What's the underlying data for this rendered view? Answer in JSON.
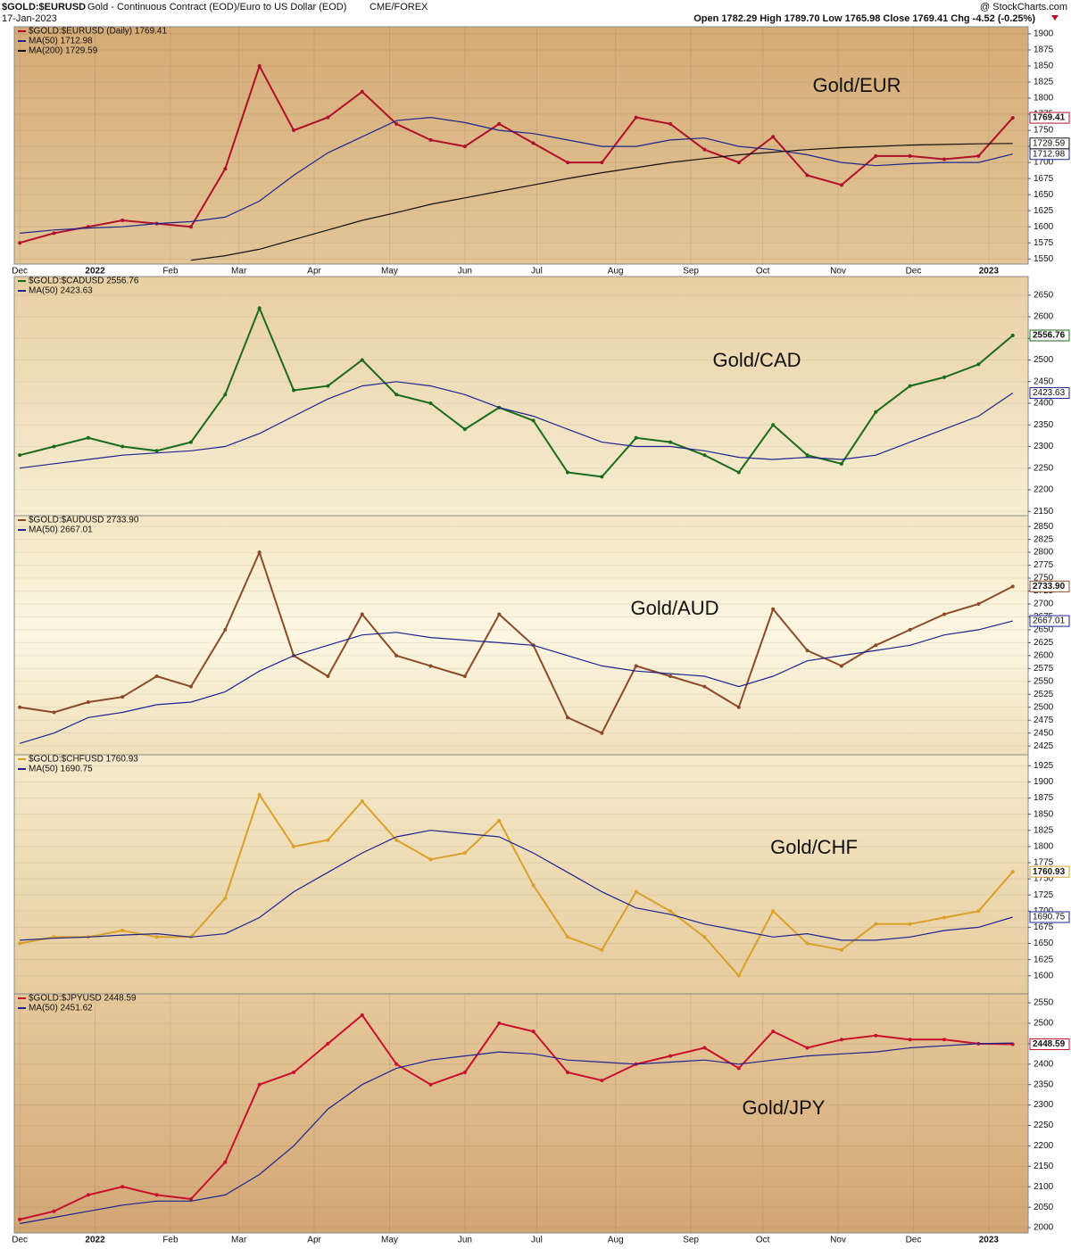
{
  "header": {
    "symbol": "$GOLD:$EURUSD",
    "description": "Gold - Continuous Contract (EOD)/Euro to US Dollar (EOD)",
    "exchange": "CME/FOREX",
    "date": "17-Jan-2023",
    "brand": "@ StockCharts.com",
    "quote": "Open 1782.29  High 1789.70  Low 1765.98  Close 1769.41  Chg -4.52 (-0.25%)"
  },
  "chart_data": [
    {
      "type": "line",
      "annotation": "Gold/EUR",
      "xlim": [
        -0.16,
        29.45
      ],
      "ylim": [
        1542,
        1911
      ],
      "yticks": [
        1550,
        1575,
        1600,
        1625,
        1650,
        1675,
        1700,
        1725,
        1750,
        1775,
        1800,
        1825,
        1850,
        1875,
        1900
      ],
      "xticks": [
        {
          "value": 0,
          "label": "Dec"
        },
        {
          "value": 2.2,
          "label": "2022"
        },
        {
          "value": 4.4,
          "label": "Feb"
        },
        {
          "value": 6.4,
          "label": "Mar"
        },
        {
          "value": 8.6,
          "label": "Apr"
        },
        {
          "value": 10.8,
          "label": "May"
        },
        {
          "value": 13,
          "label": "Jun"
        },
        {
          "value": 15.1,
          "label": "Jul"
        },
        {
          "value": 17.4,
          "label": "Aug"
        },
        {
          "value": 19.6,
          "label": "Sep"
        },
        {
          "value": 21.7,
          "label": "Oct"
        },
        {
          "value": 23.9,
          "label": "Nov"
        },
        {
          "value": 26.1,
          "label": "Dec"
        },
        {
          "value": 28.3,
          "label": "2023"
        }
      ],
      "value_boxes": [
        "1769.41",
        "1712.98",
        "1729.59"
      ],
      "series": [
        {
          "name": "$GOLD:$EURUSD (Daily) 1769.41",
          "color": "#b0102a",
          "values": [
            1575,
            1590,
            1600,
            1610,
            1605,
            1600,
            1690,
            1850,
            1750,
            1770,
            1810,
            1760,
            1735,
            1725,
            1760,
            1730,
            1700,
            1700,
            1770,
            1760,
            1720,
            1700,
            1740,
            1680,
            1665,
            1710,
            1710,
            1705,
            1710,
            1769.41
          ]
        },
        {
          "name": "MA(50) 1712.98",
          "color": "#1c2590",
          "values": [
            1590,
            1595,
            1598,
            1600,
            1605,
            1608,
            1615,
            1640,
            1680,
            1715,
            1740,
            1765,
            1770,
            1762,
            1750,
            1745,
            1735,
            1725,
            1725,
            1735,
            1738,
            1725,
            1720,
            1712,
            1700,
            1695,
            1698,
            1700,
            1700,
            1712.98
          ]
        },
        {
          "name": "MA(200) 1729.59",
          "color": "#111111",
          "values": [
            null,
            null,
            null,
            null,
            null,
            1548,
            1555,
            1565,
            1580,
            1595,
            1610,
            1622,
            1635,
            1645,
            1655,
            1665,
            1675,
            1684,
            1692,
            1700,
            1706,
            1712,
            1716,
            1720,
            1723,
            1725,
            1727,
            1728,
            1729,
            1729.59
          ]
        }
      ]
    },
    {
      "type": "line",
      "annotation": "Gold/CAD",
      "xlim": [
        -0.16,
        29.45
      ],
      "ylim": [
        2140,
        2693
      ],
      "yticks": [
        2150,
        2200,
        2250,
        2300,
        2350,
        2400,
        2450,
        2500,
        2550,
        2600,
        2650
      ],
      "value_boxes": [
        "2556.76",
        "2423.63"
      ],
      "series": [
        {
          "name": "$GOLD:$CADUSD 2556.76",
          "color": "#1a6b1a",
          "values": [
            2280,
            2300,
            2320,
            2300,
            2290,
            2310,
            2420,
            2620,
            2430,
            2440,
            2500,
            2420,
            2400,
            2340,
            2390,
            2360,
            2240,
            2230,
            2320,
            2310,
            2280,
            2240,
            2350,
            2280,
            2260,
            2380,
            2440,
            2460,
            2490,
            2556.76
          ]
        },
        {
          "name": "MA(50) 2423.63",
          "color": "#1c2590",
          "values": [
            2250,
            2260,
            2270,
            2280,
            2285,
            2290,
            2300,
            2330,
            2370,
            2410,
            2440,
            2450,
            2440,
            2420,
            2390,
            2370,
            2340,
            2310,
            2300,
            2300,
            2290,
            2275,
            2270,
            2275,
            2270,
            2280,
            2310,
            2340,
            2370,
            2423.63
          ]
        }
      ]
    },
    {
      "type": "line",
      "annotation": "Gold/AUD",
      "xlim": [
        -0.16,
        29.45
      ],
      "ylim": [
        2408,
        2871
      ],
      "yticks": [
        2425,
        2450,
        2475,
        2500,
        2525,
        2550,
        2575,
        2600,
        2625,
        2650,
        2675,
        2700,
        2725,
        2750,
        2775,
        2800,
        2825,
        2850
      ],
      "value_boxes": [
        "2733.90",
        "2667.01"
      ],
      "series": [
        {
          "name": "$GOLD:$AUDUSD 2733.90",
          "color": "#8b4a2a",
          "values": [
            2500,
            2490,
            2510,
            2520,
            2560,
            2540,
            2650,
            2800,
            2600,
            2560,
            2680,
            2600,
            2580,
            2560,
            2680,
            2620,
            2480,
            2450,
            2580,
            2560,
            2540,
            2500,
            2690,
            2610,
            2580,
            2620,
            2650,
            2680,
            2700,
            2733.9
          ]
        },
        {
          "name": "MA(50) 2667.01",
          "color": "#1c2590",
          "values": [
            2430,
            2450,
            2480,
            2490,
            2505,
            2510,
            2530,
            2570,
            2600,
            2620,
            2640,
            2645,
            2635,
            2630,
            2625,
            2620,
            2600,
            2580,
            2570,
            2565,
            2560,
            2540,
            2560,
            2590,
            2600,
            2610,
            2620,
            2640,
            2650,
            2667.01
          ]
        }
      ]
    },
    {
      "type": "line",
      "annotation": "Gold/CHF",
      "xlim": [
        -0.16,
        29.45
      ],
      "ylim": [
        1572,
        1942
      ],
      "yticks": [
        1600,
        1625,
        1650,
        1675,
        1700,
        1725,
        1750,
        1775,
        1800,
        1825,
        1850,
        1875,
        1900,
        1925
      ],
      "value_boxes": [
        "1760.93",
        "1690.75"
      ],
      "series": [
        {
          "name": "$GOLD:$CHFUSD 1760.93",
          "color": "#d9a02a",
          "values": [
            1650,
            1660,
            1660,
            1670,
            1660,
            1660,
            1720,
            1880,
            1800,
            1810,
            1870,
            1810,
            1780,
            1790,
            1840,
            1740,
            1660,
            1640,
            1730,
            1700,
            1660,
            1600,
            1700,
            1650,
            1640,
            1680,
            1680,
            1690,
            1700,
            1760.93
          ]
        },
        {
          "name": "MA(50) 1690.75",
          "color": "#1c2590",
          "values": [
            1655,
            1658,
            1660,
            1663,
            1665,
            1660,
            1665,
            1690,
            1730,
            1760,
            1790,
            1815,
            1825,
            1820,
            1815,
            1790,
            1760,
            1730,
            1705,
            1695,
            1680,
            1670,
            1660,
            1665,
            1655,
            1655,
            1660,
            1670,
            1675,
            1690.75
          ]
        }
      ]
    },
    {
      "type": "line",
      "annotation": "Gold/JPY",
      "xlim": [
        -0.16,
        29.45
      ],
      "ylim": [
        1987,
        2572
      ],
      "yticks": [
        2000,
        2050,
        2100,
        2150,
        2200,
        2250,
        2300,
        2350,
        2400,
        2450,
        2500,
        2550
      ],
      "xticks": [
        {
          "value": 0,
          "label": "Dec"
        },
        {
          "value": 2.2,
          "label": "2022"
        },
        {
          "value": 4.4,
          "label": "Feb"
        },
        {
          "value": 6.4,
          "label": "Mar"
        },
        {
          "value": 8.6,
          "label": "Apr"
        },
        {
          "value": 10.8,
          "label": "May"
        },
        {
          "value": 13,
          "label": "Jun"
        },
        {
          "value": 15.1,
          "label": "Jul"
        },
        {
          "value": 17.4,
          "label": "Aug"
        },
        {
          "value": 19.6,
          "label": "Sep"
        },
        {
          "value": 21.7,
          "label": "Oct"
        },
        {
          "value": 23.9,
          "label": "Nov"
        },
        {
          "value": 26.1,
          "label": "Dec"
        },
        {
          "value": 28.3,
          "label": "2023"
        }
      ],
      "value_boxes": [
        "2448.59"
      ],
      "series": [
        {
          "name": "$GOLD:$JPYUSD 2448.59",
          "color": "#c8102e",
          "values": [
            2020,
            2040,
            2080,
            2100,
            2080,
            2070,
            2160,
            2350,
            2380,
            2450,
            2520,
            2400,
            2350,
            2380,
            2500,
            2480,
            2380,
            2360,
            2400,
            2420,
            2440,
            2390,
            2480,
            2440,
            2460,
            2470,
            2460,
            2460,
            2450,
            2448.59
          ]
        },
        {
          "name": "MA(50) 2451.62",
          "color": "#1c2590",
          "values": [
            2010,
            2025,
            2040,
            2055,
            2065,
            2065,
            2080,
            2130,
            2200,
            2290,
            2350,
            2390,
            2410,
            2420,
            2430,
            2425,
            2410,
            2405,
            2400,
            2405,
            2410,
            2400,
            2410,
            2420,
            2425,
            2430,
            2440,
            2445,
            2450,
            2451.62
          ]
        }
      ]
    }
  ]
}
